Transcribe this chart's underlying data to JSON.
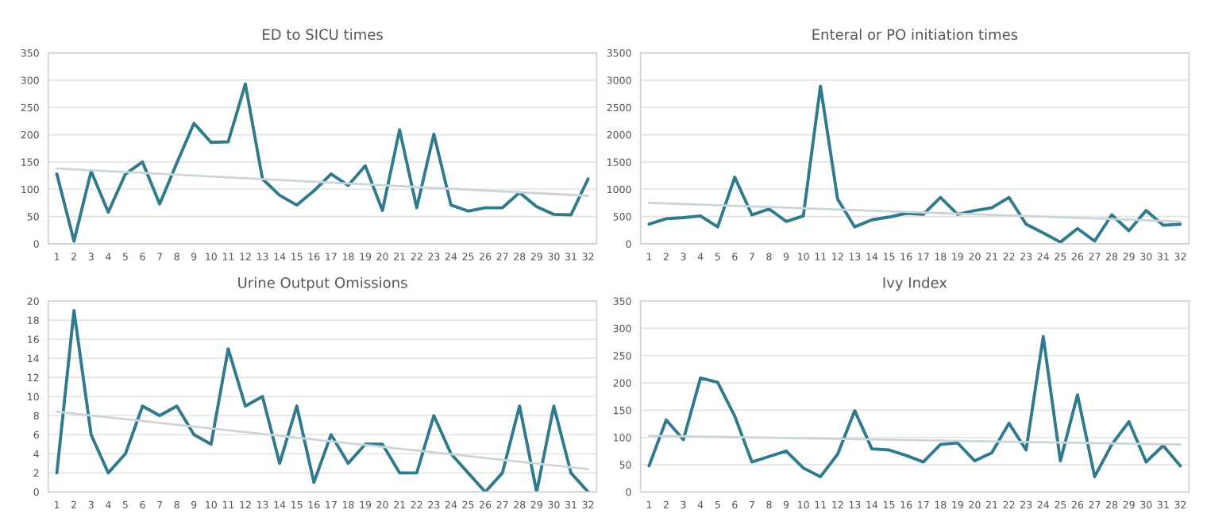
{
  "chart_data": [
    {
      "type": "line",
      "title": "ED to SICU times",
      "categories": [
        "1",
        "2",
        "3",
        "4",
        "5",
        "6",
        "7",
        "8",
        "9",
        "10",
        "11",
        "12",
        "13",
        "14",
        "15",
        "16",
        "17",
        "18",
        "19",
        "20",
        "21",
        "22",
        "23",
        "24",
        "25",
        "26",
        "27",
        "28",
        "29",
        "30",
        "31",
        "32"
      ],
      "ylim": [
        0,
        350
      ],
      "yticks": [
        0,
        50,
        100,
        150,
        200,
        250,
        300,
        350
      ],
      "grid": "y",
      "series": [
        {
          "color": "#2f7a8c",
          "values": [
            128,
            5,
            133,
            58,
            128,
            150,
            73,
            148,
            221,
            186,
            187,
            293,
            119,
            89,
            71,
            97,
            128,
            107,
            143,
            61,
            209,
            66,
            201,
            71,
            60,
            66,
            66,
            94,
            68,
            54,
            53,
            119
          ]
        },
        {
          "type": "line",
          "color": "#c9d5da",
          "x": [
            "1",
            "32"
          ],
          "values": [
            138,
            88
          ]
        }
      ]
    },
    {
      "type": "line",
      "title": "Enteral or PO initiation times",
      "categories": [
        "1",
        "2",
        "3",
        "4",
        "5",
        "6",
        "7",
        "8",
        "9",
        "10",
        "11",
        "12",
        "13",
        "14",
        "15",
        "16",
        "17",
        "18",
        "19",
        "20",
        "21",
        "22",
        "23",
        "24",
        "25",
        "26",
        "27",
        "28",
        "29",
        "30",
        "31",
        "32"
      ],
      "ylim": [
        0,
        3500
      ],
      "yticks": [
        0,
        500,
        1000,
        1500,
        2000,
        2500,
        3000,
        3500
      ],
      "grid": "y",
      "series": [
        {
          "color": "#2f7a8c",
          "values": [
            360,
            460,
            480,
            510,
            310,
            1220,
            530,
            640,
            410,
            510,
            2890,
            820,
            310,
            440,
            490,
            560,
            540,
            850,
            540,
            610,
            660,
            850,
            360,
            200,
            30,
            280,
            50,
            530,
            240,
            610,
            340,
            360
          ]
        },
        {
          "type": "line",
          "color": "#c9d5da",
          "x": [
            "1",
            "32"
          ],
          "values": [
            750,
            410
          ]
        }
      ]
    },
    {
      "type": "line",
      "title": "Urine Output Omissions",
      "categories": [
        "1",
        "2",
        "3",
        "4",
        "5",
        "6",
        "7",
        "8",
        "9",
        "10",
        "11",
        "12",
        "13",
        "14",
        "15",
        "16",
        "17",
        "18",
        "19",
        "20",
        "21",
        "22",
        "23",
        "24",
        "25",
        "26",
        "27",
        "28",
        "29",
        "30",
        "31",
        "32"
      ],
      "ylim": [
        0,
        20
      ],
      "yticks": [
        0,
        2,
        4,
        6,
        8,
        10,
        12,
        14,
        16,
        18,
        20
      ],
      "grid": "y",
      "series": [
        {
          "color": "#2f7a8c",
          "values": [
            2,
            19,
            6,
            2,
            4,
            9,
            8,
            9,
            6,
            5,
            15,
            9,
            10,
            3,
            9,
            1,
            6,
            3,
            5,
            5,
            2,
            2,
            8,
            4,
            2,
            0,
            2,
            9,
            0,
            9,
            2,
            0
          ]
        },
        {
          "type": "line",
          "color": "#c9d5da",
          "x": [
            "1",
            "32"
          ],
          "values": [
            8.4,
            2.4
          ]
        }
      ]
    },
    {
      "type": "line",
      "title": "Ivy Index",
      "categories": [
        "1",
        "2",
        "3",
        "4",
        "5",
        "6",
        "7",
        "8",
        "9",
        "10",
        "11",
        "12",
        "13",
        "14",
        "15",
        "16",
        "17",
        "18",
        "19",
        "20",
        "21",
        "22",
        "23",
        "24",
        "25",
        "26",
        "27",
        "28",
        "29",
        "30",
        "31",
        "32"
      ],
      "ylim": [
        0,
        350
      ],
      "yticks": [
        0,
        50,
        100,
        150,
        200,
        250,
        300,
        350
      ],
      "grid": "y",
      "series": [
        {
          "color": "#2f7a8c",
          "values": [
            48,
            132,
            96,
            209,
            201,
            139,
            55,
            65,
            75,
            44,
            28,
            69,
            149,
            79,
            77,
            67,
            55,
            87,
            90,
            57,
            72,
            126,
            77,
            285,
            57,
            178,
            28,
            87,
            129,
            55,
            85,
            48
          ]
        },
        {
          "type": "line",
          "color": "#c9d5da",
          "x": [
            "1",
            "32"
          ],
          "values": [
            103,
            87
          ]
        }
      ]
    }
  ]
}
